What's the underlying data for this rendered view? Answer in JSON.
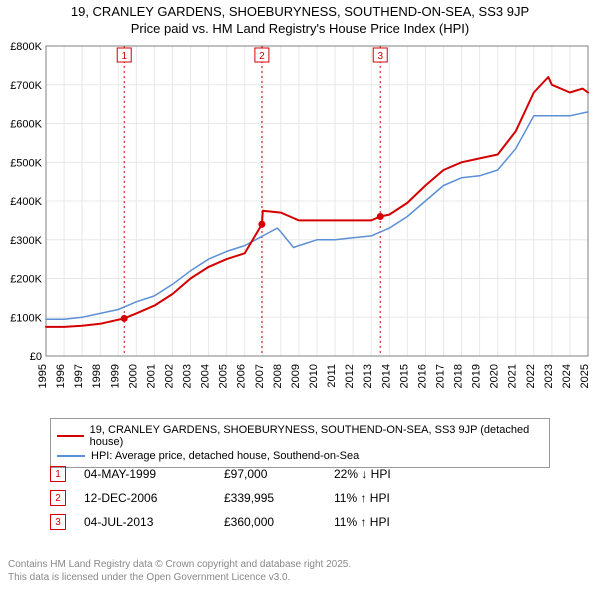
{
  "title_line1": "19, CRANLEY GARDENS, SHOEBURYNESS, SOUTHEND-ON-SEA, SS3 9JP",
  "title_line2": "Price paid vs. HM Land Registry's House Price Index (HPI)",
  "chart": {
    "type": "line",
    "background_color": "#ffffff",
    "plot_border_color": "#808080",
    "grid_color": "#e8e8e8",
    "x": {
      "min": 1995,
      "max": 2025,
      "tick_step": 1,
      "label_fontsize": 11,
      "tick_rotation": -90
    },
    "y": {
      "min": 0,
      "max": 800000,
      "tick_step": 100000,
      "label_prefix": "£",
      "label_suffix": "K",
      "label_fontsize": 11
    },
    "series": [
      {
        "name": "property",
        "label": "19, CRANLEY GARDENS, SHOEBURYNESS, SOUTHEND-ON-SEA, SS3 9JP (detached house)",
        "color": "#d40000",
        "line_width": 2,
        "points": [
          [
            1995,
            75000
          ],
          [
            1996,
            75000
          ],
          [
            1997,
            78000
          ],
          [
            1998,
            83000
          ],
          [
            1999.33,
            97000
          ],
          [
            2000,
            110000
          ],
          [
            2001,
            130000
          ],
          [
            2002,
            160000
          ],
          [
            2003,
            200000
          ],
          [
            2004,
            230000
          ],
          [
            2005,
            250000
          ],
          [
            2006,
            265000
          ],
          [
            2006.95,
            339995
          ],
          [
            2007,
            375000
          ],
          [
            2008,
            370000
          ],
          [
            2008.5,
            360000
          ],
          [
            2009,
            350000
          ],
          [
            2010,
            350000
          ],
          [
            2011,
            350000
          ],
          [
            2012,
            350000
          ],
          [
            2013,
            350000
          ],
          [
            2013.5,
            360000
          ],
          [
            2014,
            365000
          ],
          [
            2015,
            395000
          ],
          [
            2016,
            440000
          ],
          [
            2017,
            480000
          ],
          [
            2018,
            500000
          ],
          [
            2019,
            510000
          ],
          [
            2020,
            520000
          ],
          [
            2021,
            580000
          ],
          [
            2022,
            680000
          ],
          [
            2022.8,
            720000
          ],
          [
            2023,
            700000
          ],
          [
            2024,
            680000
          ],
          [
            2024.7,
            690000
          ],
          [
            2025,
            680000
          ]
        ]
      },
      {
        "name": "hpi",
        "label": "HPI: Average price, detached house, Southend-on-Sea",
        "color": "#5b8fd6",
        "line_width": 1.5,
        "points": [
          [
            1995,
            95000
          ],
          [
            1996,
            95000
          ],
          [
            1997,
            100000
          ],
          [
            1998,
            110000
          ],
          [
            1999,
            120000
          ],
          [
            2000,
            140000
          ],
          [
            2001,
            155000
          ],
          [
            2002,
            185000
          ],
          [
            2003,
            220000
          ],
          [
            2004,
            250000
          ],
          [
            2005,
            270000
          ],
          [
            2006,
            285000
          ],
          [
            2007,
            310000
          ],
          [
            2007.8,
            330000
          ],
          [
            2008,
            320000
          ],
          [
            2008.7,
            280000
          ],
          [
            2009,
            285000
          ],
          [
            2010,
            300000
          ],
          [
            2011,
            300000
          ],
          [
            2012,
            305000
          ],
          [
            2013,
            310000
          ],
          [
            2014,
            330000
          ],
          [
            2015,
            360000
          ],
          [
            2016,
            400000
          ],
          [
            2017,
            440000
          ],
          [
            2018,
            460000
          ],
          [
            2019,
            465000
          ],
          [
            2020,
            480000
          ],
          [
            2021,
            535000
          ],
          [
            2022,
            620000
          ],
          [
            2023,
            620000
          ],
          [
            2024,
            620000
          ],
          [
            2025,
            630000
          ]
        ]
      }
    ],
    "markers": [
      {
        "n": "1",
        "x": 1999.33,
        "y": 97000,
        "color": "#d40000"
      },
      {
        "n": "2",
        "x": 2006.95,
        "y": 339995,
        "color": "#d40000"
      },
      {
        "n": "3",
        "x": 2013.5,
        "y": 360000,
        "color": "#d40000"
      }
    ],
    "marker_box": {
      "border_color": "#d40000",
      "bg": "#ffffff",
      "size": 14,
      "fontsize": 10
    },
    "marker_vline": {
      "color": "#d40000",
      "dash": "2,3",
      "width": 1
    }
  },
  "legend": {
    "rows": [
      {
        "color": "#d40000",
        "label": "19, CRANLEY GARDENS, SHOEBURYNESS, SOUTHEND-ON-SEA, SS3 9JP (detached house)"
      },
      {
        "color": "#5b8fd6",
        "label": "HPI: Average price, detached house, Southend-on-Sea"
      }
    ]
  },
  "transactions": [
    {
      "n": "1",
      "date": "04-MAY-1999",
      "price": "£97,000",
      "hpi": "22% ↓ HPI",
      "marker_color": "#d40000"
    },
    {
      "n": "2",
      "date": "12-DEC-2006",
      "price": "£339,995",
      "hpi": "11% ↑ HPI",
      "marker_color": "#d40000"
    },
    {
      "n": "3",
      "date": "04-JUL-2013",
      "price": "£360,000",
      "hpi": "11% ↑ HPI",
      "marker_color": "#d40000"
    }
  ],
  "footer_line1": "Contains HM Land Registry data © Crown copyright and database right 2025.",
  "footer_line2": "This data is licensed under the Open Government Licence v3.0."
}
